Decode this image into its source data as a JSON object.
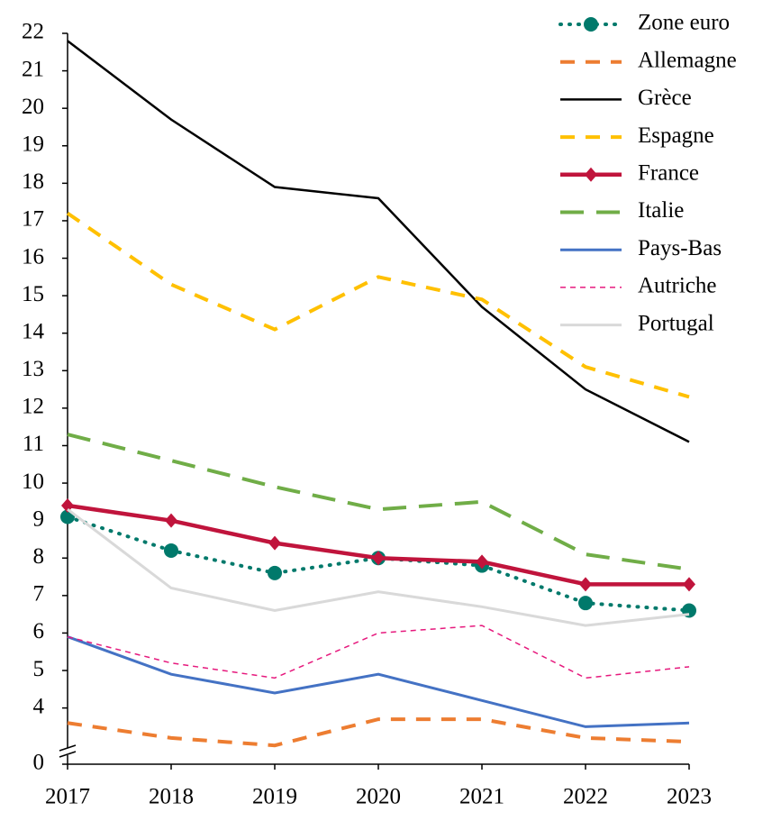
{
  "chart_data": {
    "type": "line",
    "categories": [
      "2017",
      "2018",
      "2019",
      "2020",
      "2021",
      "2022",
      "2023"
    ],
    "ylim": [
      0,
      22
    ],
    "axis_break": [
      0,
      2.5
    ],
    "yticks": [
      0,
      4,
      5,
      6,
      7,
      8,
      9,
      10,
      11,
      12,
      13,
      14,
      15,
      16,
      17,
      18,
      19,
      20,
      21,
      22
    ],
    "grid": false,
    "legend": "upper right",
    "series": [
      {
        "name": "Zone euro",
        "color": "#00796b",
        "style": "dotted",
        "marker": "circle",
        "values": [
          9.1,
          8.2,
          7.6,
          8.0,
          7.8,
          6.8,
          6.6
        ]
      },
      {
        "name": "Allemagne",
        "color": "#ed7d31",
        "style": "dashed",
        "values": [
          3.6,
          3.2,
          3.0,
          3.7,
          3.7,
          3.2,
          3.1
        ]
      },
      {
        "name": "Grèce",
        "color": "#000000",
        "style": "solid",
        "values": [
          21.8,
          19.7,
          17.9,
          17.6,
          14.7,
          12.5,
          11.1
        ]
      },
      {
        "name": "Espagne",
        "color": "#ffc000",
        "style": "dashed",
        "values": [
          17.2,
          15.3,
          14.1,
          15.5,
          14.9,
          13.1,
          12.3
        ]
      },
      {
        "name": "France",
        "color": "#c0143c",
        "style": "solid",
        "marker": "diamond",
        "values": [
          9.4,
          9.0,
          8.4,
          8.0,
          7.9,
          7.3,
          7.3
        ]
      },
      {
        "name": "Italie",
        "color": "#70ad47",
        "style": "longdash",
        "values": [
          11.3,
          10.6,
          9.9,
          9.3,
          9.5,
          8.1,
          7.7
        ]
      },
      {
        "name": "Pays-Bas",
        "color": "#4472c4",
        "style": "solid",
        "values": [
          5.9,
          4.9,
          4.4,
          4.9,
          4.2,
          3.5,
          3.6
        ]
      },
      {
        "name": "Autriche",
        "color": "#e6197d",
        "style": "finedash",
        "values": [
          5.9,
          5.2,
          4.8,
          6.0,
          6.2,
          4.8,
          5.1
        ]
      },
      {
        "name": "Portugal",
        "color": "#d9d9d9",
        "style": "solid",
        "values": [
          9.3,
          7.2,
          6.6,
          7.1,
          6.7,
          6.2,
          6.5
        ]
      }
    ]
  }
}
